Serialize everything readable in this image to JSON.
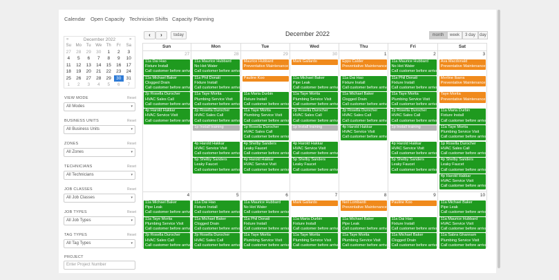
{
  "tabs": [
    "Calendar",
    "Open Capacity",
    "Technician Shifts",
    "Capacity Planning"
  ],
  "mini_calendar": {
    "prev": "«",
    "title": "December 2022",
    "next": "»",
    "weekdays": [
      "Su",
      "Mo",
      "Tu",
      "We",
      "Th",
      "Fr",
      "Sa"
    ],
    "rows": [
      [
        {
          "d": "27",
          "muted": true
        },
        {
          "d": "28",
          "muted": true
        },
        {
          "d": "29",
          "muted": true
        },
        {
          "d": "30",
          "muted": true
        },
        {
          "d": "1"
        },
        {
          "d": "2"
        },
        {
          "d": "3"
        }
      ],
      [
        {
          "d": "4"
        },
        {
          "d": "5"
        },
        {
          "d": "6"
        },
        {
          "d": "7"
        },
        {
          "d": "8"
        },
        {
          "d": "9"
        },
        {
          "d": "10"
        }
      ],
      [
        {
          "d": "11"
        },
        {
          "d": "12"
        },
        {
          "d": "13"
        },
        {
          "d": "14"
        },
        {
          "d": "15"
        },
        {
          "d": "16"
        },
        {
          "d": "17"
        }
      ],
      [
        {
          "d": "18"
        },
        {
          "d": "19"
        },
        {
          "d": "20"
        },
        {
          "d": "21"
        },
        {
          "d": "22"
        },
        {
          "d": "23"
        },
        {
          "d": "24"
        }
      ],
      [
        {
          "d": "25"
        },
        {
          "d": "26"
        },
        {
          "d": "27"
        },
        {
          "d": "28"
        },
        {
          "d": "29"
        },
        {
          "d": "30",
          "selected": true
        },
        {
          "d": "31"
        }
      ],
      [
        {
          "d": "1",
          "muted": true
        },
        {
          "d": "2",
          "muted": true
        },
        {
          "d": "3",
          "muted": true
        },
        {
          "d": "4",
          "muted": true
        },
        {
          "d": "5",
          "muted": true
        },
        {
          "d": "6",
          "muted": true
        },
        {
          "d": "7",
          "muted": true
        }
      ]
    ]
  },
  "filters": [
    {
      "label": "VIEW MODE",
      "reset": "Reset",
      "value": "All Modes"
    },
    {
      "label": "BUSINESS UNITS",
      "reset": "Reset",
      "value": "All Business Units"
    },
    {
      "label": "ZONES",
      "reset": "Reset",
      "value": "All Zones"
    },
    {
      "label": "TECHNICIANS",
      "reset": "Reset",
      "value": "All Technicians"
    },
    {
      "label": "JOB CLASSES",
      "reset": "Reset",
      "value": "All Job Classes"
    },
    {
      "label": "JOB TYPES",
      "reset": "Reset",
      "value": "All Job Types"
    },
    {
      "label": "TAG TYPES",
      "reset": "Reset",
      "value": "All Tag Types"
    }
  ],
  "project": {
    "label": "PROJECT",
    "placeholder": "Enter Project Number"
  },
  "toolbar": {
    "prev": "‹",
    "next": "›",
    "today": "today",
    "title": "December 2022",
    "views": [
      {
        "label": "month",
        "active": true
      },
      {
        "label": "week"
      },
      {
        "label": "3 day"
      },
      {
        "label": "day"
      }
    ]
  },
  "weekdays": [
    "Sun",
    "Mon",
    "Tue",
    "Wed",
    "Thu",
    "Fri",
    "Sat"
  ],
  "weeks": [
    {
      "days": [
        {
          "day": "27",
          "muted": true,
          "events": [
            {
              "color": "#1f9a1f",
              "title": "11a Dai Hao",
              "lines": [
                "Fixture Install",
                "Call customer before arrival."
              ]
            },
            {
              "color": "#1f9a1f",
              "title": "11a Michael Baker",
              "lines": [
                "Clogged Drain",
                "Call customer before arrival."
              ]
            },
            {
              "color": "#1f9a1f",
              "title": "2p Rosella Durocher",
              "lines": [
                "HVAC Sales Call",
                "Call customer before arrival."
              ]
            },
            {
              "color": "#1f9a1f",
              "title": "4p Harold Hakkar",
              "lines": [
                "HVAC Service Visit",
                "Call customer before arrival."
              ]
            }
          ]
        },
        {
          "day": "28",
          "muted": true,
          "events": [
            {
              "color": "#1f9a1f",
              "title": "11a Maurice Hubbard",
              "lines": [
                "No Hot Water",
                "Call customer before arrival."
              ]
            },
            {
              "color": "#1f9a1f",
              "title": "11a Phil Donati",
              "lines": [
                "Fixture Install",
                "Call customer before arrival."
              ]
            },
            {
              "color": "#1f9a1f",
              "title": "11a Taye Morita",
              "lines": [
                "Plumbing Service Visit",
                "Call customer before arrival."
              ]
            },
            {
              "color": "#1f9a1f",
              "title": "2p Rosella Durocher",
              "lines": [
                "HVAC Sales Call",
                "Call customer before arrival."
              ]
            },
            {
              "color": "#b4b4b4",
              "title": "1p Install training",
              "lines": []
            },
            {
              "color": "#1f9a1f",
              "title": "4p Harold Hakkar",
              "lines": [
                "HVAC Service Visit",
                "Call customer before arrival."
              ]
            },
            {
              "color": "#1f9a1f",
              "title": "5p Shelby Sanders",
              "lines": [
                "Leaky Faucet",
                "Call customer before arrival."
              ]
            }
          ]
        },
        {
          "day": "29",
          "muted": true,
          "events": [
            {
              "color": "#f08a1c",
              "title": "Maurice Hubbard",
              "lines": [
                "Preventative Maintenance Ch"
              ]
            },
            {
              "color": "#f08a1c",
              "title": "Pauline Koo",
              "lines": []
            },
            {
              "color": "#1f9a1f",
              "title": "11a Maria Durbin",
              "lines": [
                "Fixture Install",
                "Call customer before arrival."
              ]
            },
            {
              "color": "#1f9a1f",
              "title": "11a Taye Morita",
              "lines": [
                "Plumbing Service Visit",
                "Call customer before arrival."
              ]
            },
            {
              "color": "#1f9a1f",
              "title": "1p Rosella Durocher",
              "lines": [
                "HVAC Sales Call",
                "Call customer before arrival."
              ]
            },
            {
              "color": "#1f9a1f",
              "title": "4p Shelby Sanders",
              "lines": [
                "Leaky Faucet",
                "Call customer before arrival."
              ]
            },
            {
              "color": "#1f9a1f",
              "title": "4p Harold Hakkar",
              "lines": [
                "HVAC Service Visit",
                "Call customer before arrival."
              ]
            }
          ]
        },
        {
          "day": "30",
          "muted": true,
          "events": [
            {
              "color": "#f08a1c",
              "title": "Mark Gallardo",
              "lines": []
            },
            {
              "color": "#1f9a1f",
              "title": "11a Michael Baker",
              "lines": [
                "Pipe Leak",
                "Call customer before arrival."
              ]
            },
            {
              "color": "#1f9a1f",
              "title": "11a Taye Morita",
              "lines": [
                "Plumbing Service Visit",
                "Call customer before arrival."
              ]
            },
            {
              "color": "#1f9a1f",
              "title": "2p Rosella Durocher",
              "lines": [
                "HVAC Sales Call",
                "Call customer before arrival."
              ]
            },
            {
              "color": "#b4b4b4",
              "title": "1p Install training",
              "lines": []
            },
            {
              "color": "#1f9a1f",
              "title": "4p Harold Hakkar",
              "lines": [
                "HVAC Service Visit",
                "Call customer before arrival."
              ]
            },
            {
              "color": "#1f9a1f",
              "title": "5p Shelby Sanders",
              "lines": [
                "Leaky Faucet",
                "Call customer before arrival."
              ]
            }
          ]
        },
        {
          "day": "1",
          "events": [
            {
              "color": "#f08a1c",
              "title": "Epps Calder",
              "lines": [
                "Preventative Maintenance Ch"
              ]
            },
            {
              "color": "#1f9a1f",
              "title": "11a Dai Hao",
              "lines": [
                "Fixture Install",
                "Call customer before arrival."
              ]
            },
            {
              "color": "#1f9a1f",
              "title": "11a Michael Baker",
              "lines": [
                "Clogged Drain",
                "Call customer before arrival."
              ]
            },
            {
              "color": "#1f9a1f",
              "title": "2p Rosella Durocher",
              "lines": [
                "HVAC Sales Call",
                "Call customer before arrival."
              ]
            },
            {
              "color": "#1f9a1f",
              "title": "4p Harold Hakkar",
              "lines": [
                "HVAC Service Visit",
                "Call customer before arrival."
              ]
            }
          ]
        },
        {
          "day": "2",
          "events": [
            {
              "color": "#1f9a1f",
              "title": "11a Maurice Hubbard",
              "lines": [
                "No Hot Water",
                "Call customer before arrival."
              ]
            },
            {
              "color": "#1f9a1f",
              "title": "11a Phil Donati",
              "lines": [
                "Fixture Install",
                "Call customer before arrival."
              ]
            },
            {
              "color": "#1f9a1f",
              "title": "11a Taye Morita",
              "lines": [
                "Plumbing Service Visit",
                "Call customer before arrival."
              ]
            },
            {
              "color": "#1f9a1f",
              "title": "2p Rosella Durocher",
              "lines": [
                "HVAC Sales Call",
                "Call customer before arrival."
              ]
            },
            {
              "color": "#b4b4b4",
              "title": "1p Install training",
              "lines": []
            },
            {
              "color": "#1f9a1f",
              "title": "4p Harold Hakkar",
              "lines": [
                "HVAC Service Visit",
                "Call customer before arrival."
              ]
            },
            {
              "color": "#1f9a1f",
              "title": "5p Shelby Sanders",
              "lines": [
                "Leaky Faucet",
                "Call customer before arrival."
              ]
            }
          ]
        },
        {
          "day": "3",
          "events": [
            {
              "color": "#f08a1c",
              "title": "Ava Macdonald",
              "lines": [
                "Preventative Maintenance Ch"
              ]
            },
            {
              "color": "#f08a1c",
              "title": "Merline Ibarra",
              "lines": [
                "Preventative Maintenance Ch"
              ]
            },
            {
              "color": "#f08a1c",
              "title": "Taye Morita",
              "lines": [
                "Preventative Maintenance Ch"
              ]
            },
            {
              "color": "#1f9a1f",
              "title": "11a Maria Durbin",
              "lines": [
                "Fixture Install",
                "Call customer before arrival."
              ]
            },
            {
              "color": "#1f9a1f",
              "title": "11a Taye Morita",
              "lines": [
                "Plumbing Service Visit",
                "Call customer before arrival."
              ]
            },
            {
              "color": "#1f9a1f",
              "title": "1p Rosella Durocher",
              "lines": [
                "HVAC Sales Call",
                "Call customer before arrival."
              ]
            },
            {
              "color": "#1f9a1f",
              "title": "4p Shelby Sanders",
              "lines": [
                "Leaky Faucet",
                "Call customer before arrival."
              ]
            },
            {
              "color": "#1f9a1f",
              "title": "4p Harold Hakkar",
              "lines": [
                "HVAC Service Visit",
                "Call customer before arrival."
              ]
            }
          ]
        }
      ]
    },
    {
      "days": [
        {
          "day": "4",
          "events": [
            {
              "color": "#1f9a1f",
              "title": "11a Michael Baker",
              "lines": [
                "Pipe Leak",
                "Call customer before arrival."
              ]
            },
            {
              "color": "#1f9a1f",
              "title": "11a Taye Morita",
              "lines": [
                "Plumbing Service Visit",
                "Call customer before arrival."
              ]
            },
            {
              "color": "#1f9a1f",
              "title": "2p Rosella Durocher",
              "lines": [
                "HVAC Sales Call",
                "Call customer before arrival."
              ]
            }
          ]
        },
        {
          "day": "5",
          "events": [
            {
              "color": "#1f9a1f",
              "title": "11a Dai Hao",
              "lines": [
                "Fixture Install",
                "Call customer before arrival."
              ]
            },
            {
              "color": "#1f9a1f",
              "title": "11a Michael Baker",
              "lines": [
                "Clogged Drain",
                "Call customer before arrival."
              ]
            },
            {
              "color": "#1f9a1f",
              "title": "2p Rosella Durocher",
              "lines": [
                "HVAC Sales Call",
                "Call customer before arrival."
              ]
            }
          ]
        },
        {
          "day": "6",
          "events": [
            {
              "color": "#1f9a1f",
              "title": "11a Maurice Hubbard",
              "lines": [
                "No Hot Water",
                "Call customer before arrival."
              ]
            },
            {
              "color": "#1f9a1f",
              "title": "11a Phil Donati",
              "lines": [
                "Fixture Install",
                "Call customer before arrival."
              ]
            },
            {
              "color": "#1f9a1f",
              "title": "11a Taye Morita",
              "lines": [
                "Plumbing Service Visit",
                "Call customer before arrival."
              ]
            }
          ]
        },
        {
          "day": "7",
          "events": [
            {
              "color": "#f08a1c",
              "title": "Mark Gallardo",
              "lines": []
            },
            {
              "color": "#1f9a1f",
              "title": "11a Maria Durbin",
              "lines": [
                "Fixture Install",
                "Call customer before arrival."
              ]
            },
            {
              "color": "#1f9a1f",
              "title": "11a Taye Morita",
              "lines": [
                "Plumbing Service Visit",
                "Call customer before arrival."
              ]
            }
          ]
        },
        {
          "day": "8",
          "events": [
            {
              "color": "#f08a1c",
              "title": "Neil Lombardi",
              "lines": [
                "Preventative Maintenance Ch"
              ]
            },
            {
              "color": "#1f9a1f",
              "title": "11a Michael Baker",
              "lines": [
                "Pipe Leak",
                "Call customer before arrival."
              ]
            },
            {
              "color": "#1f9a1f",
              "title": "11a Taye Morita",
              "lines": [
                "Plumbing Service Visit",
                "Call customer before arrival."
              ]
            }
          ]
        },
        {
          "day": "9",
          "events": [
            {
              "color": "#f08a1c",
              "title": "Pauline Koo",
              "lines": []
            },
            {
              "color": "#1f9a1f",
              "title": "11a Dai Hao",
              "lines": [
                "Fixture Install",
                "Call customer before arrival."
              ]
            },
            {
              "color": "#1f9a1f",
              "title": "11a Michael Baker",
              "lines": [
                "Clogged Drain",
                "Call customer before arrival."
              ]
            }
          ]
        },
        {
          "day": "10",
          "events": [
            {
              "color": "#1f9a1f",
              "title": "11a Michael Baker",
              "lines": [
                "Pipe Leak",
                "Call customer before arrival."
              ]
            },
            {
              "color": "#1f9a1f",
              "title": "11a Maurice Hubbard",
              "lines": [
                "HVAC Service Visit",
                "Call customer before arrival."
              ]
            },
            {
              "color": "#1f9a1f",
              "title": "11a Sabra Ghannam",
              "lines": [
                "Plumbing Service Visit",
                "Call customer before arrival."
              ]
            }
          ]
        }
      ]
    }
  ]
}
